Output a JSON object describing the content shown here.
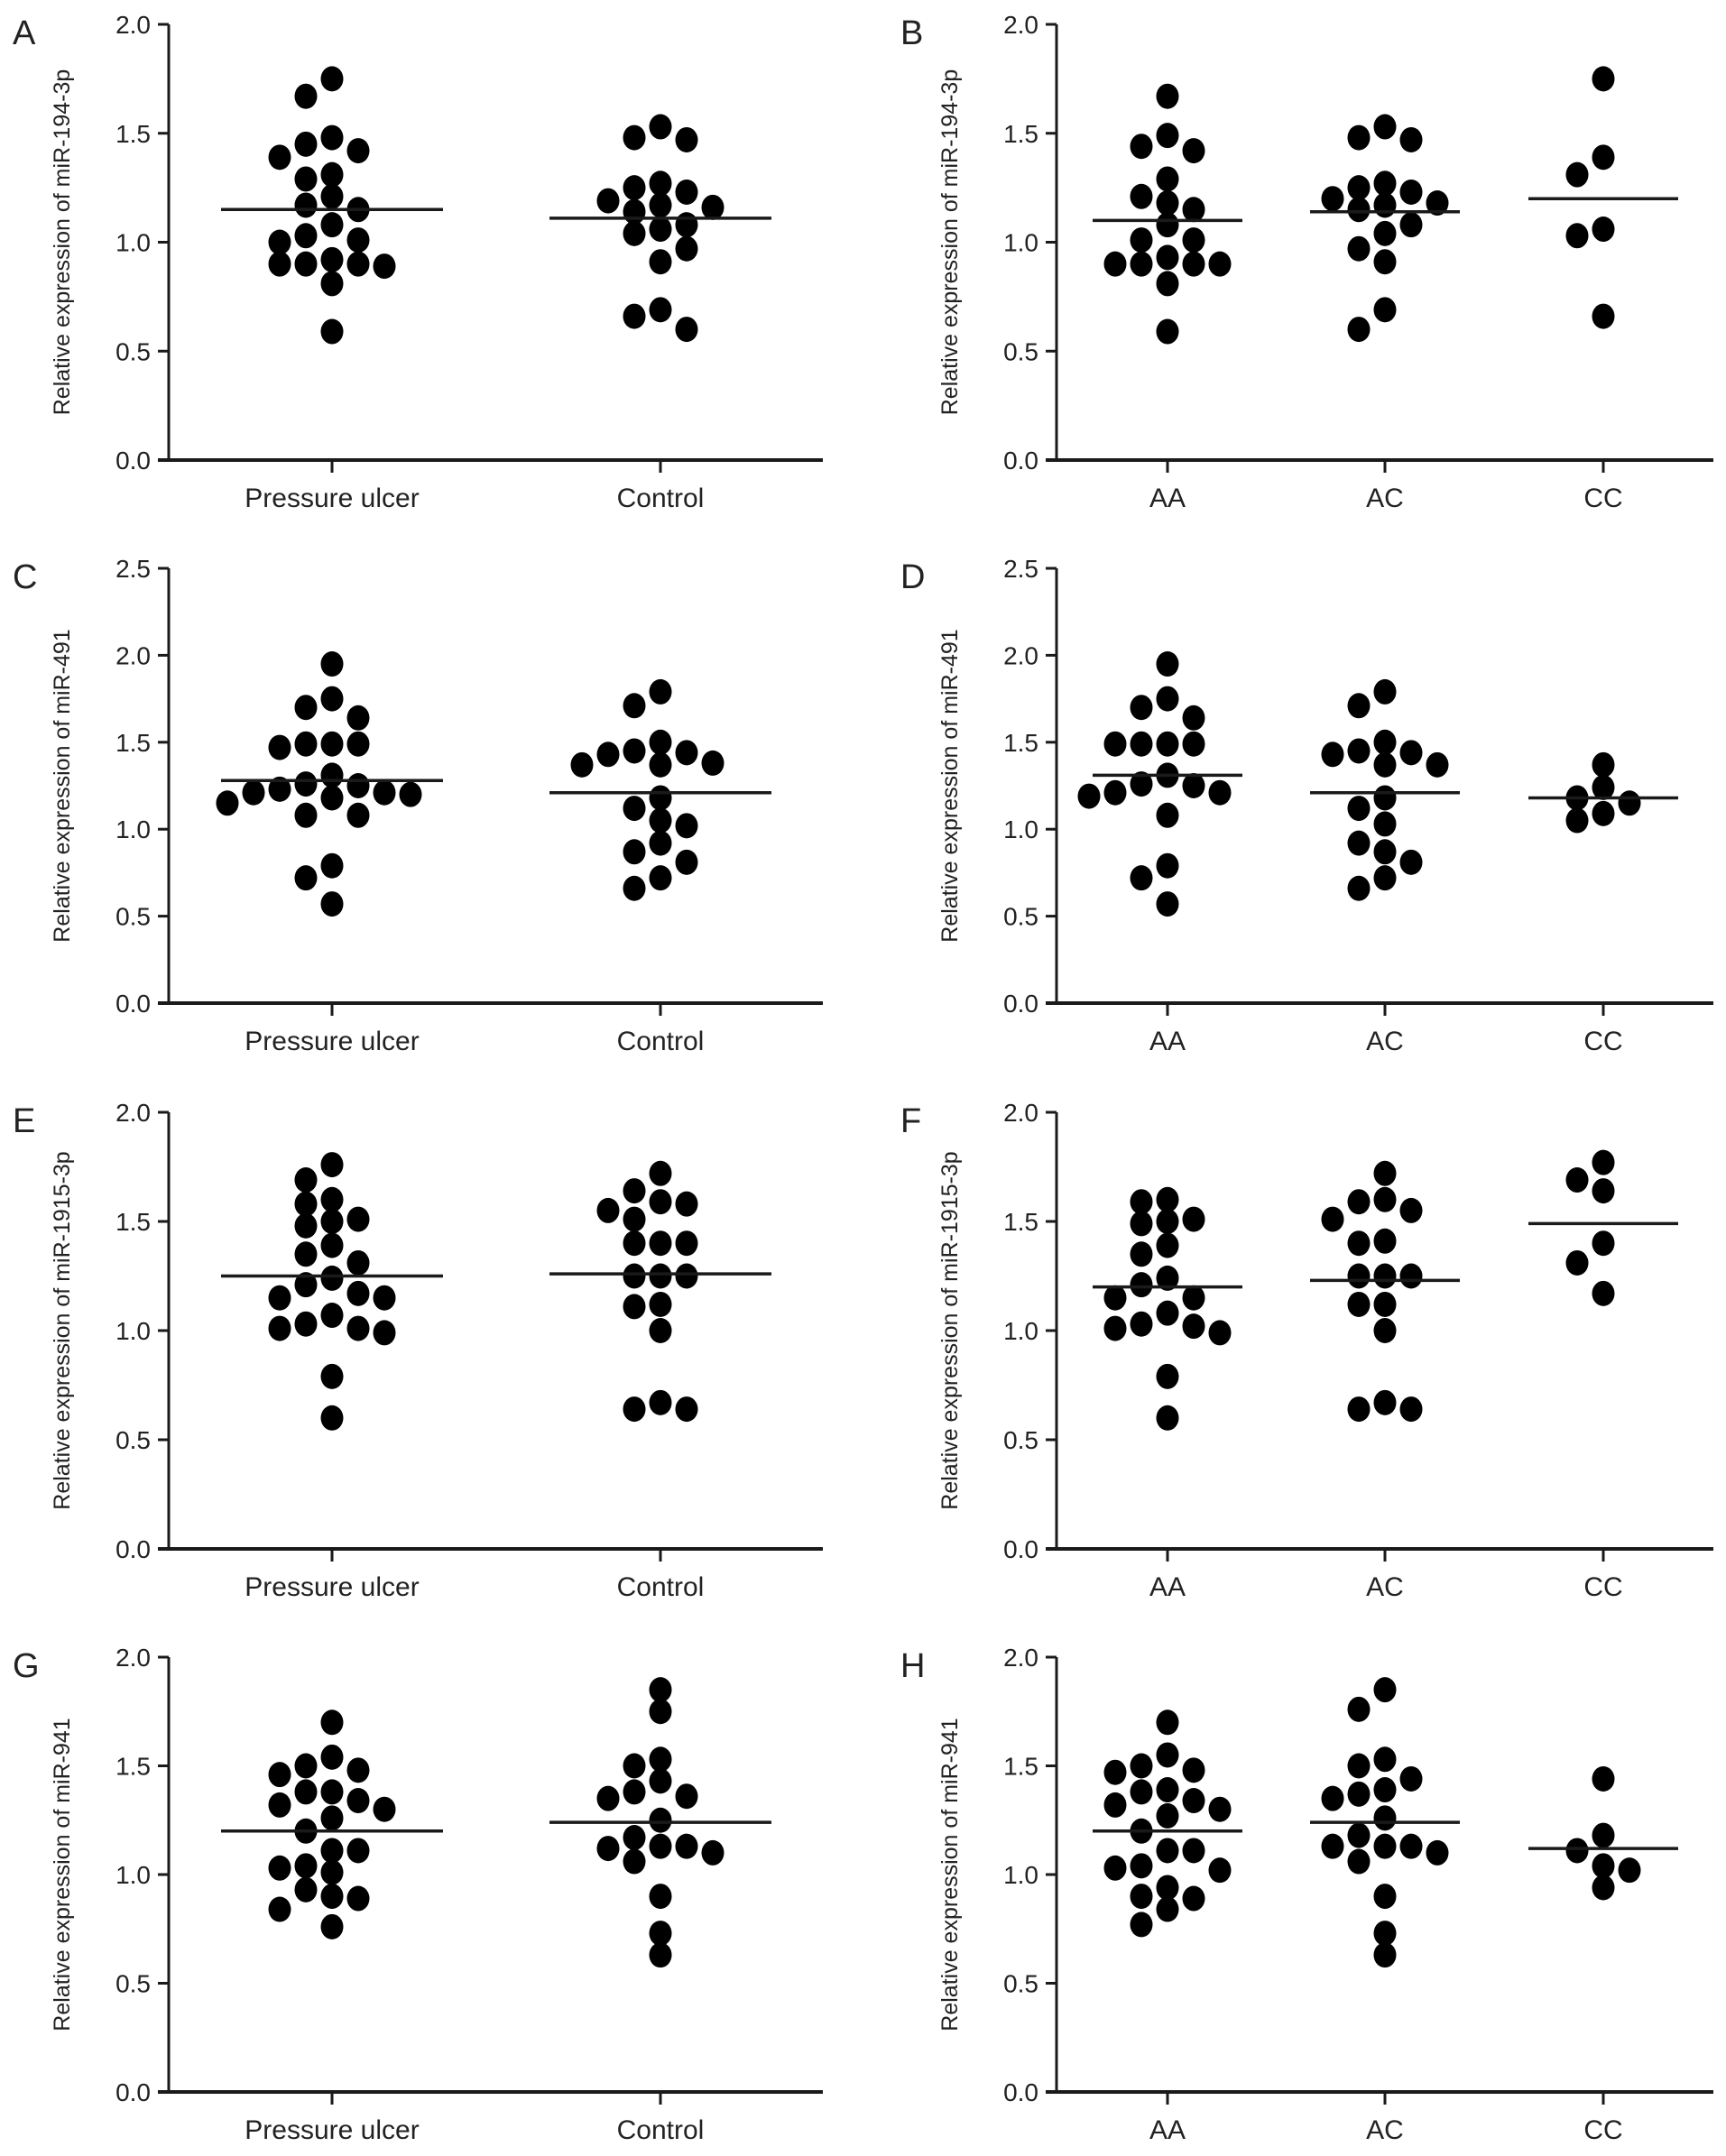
{
  "figure": {
    "colors": {
      "dot": "#000000",
      "axis": "#1a1a1a",
      "mean": "#1a1a1a",
      "text": "#222222"
    }
  },
  "chart_data": [
    {
      "panel": "A",
      "type": "scatter",
      "subtype": "dot-plot-with-mean",
      "ylabel": "Relative expression of miR-194-3p",
      "ylim": [
        0,
        2.0
      ],
      "yticks": [
        "0.0",
        "0.5",
        "1.0",
        "1.5",
        "2.0"
      ],
      "categories": [
        "Pressure ulcer",
        "Control"
      ],
      "series": [
        {
          "name": "Pressure ulcer",
          "mean": 1.15,
          "values": [
            1.75,
            1.67,
            1.48,
            1.45,
            1.42,
            1.39,
            1.31,
            1.29,
            1.21,
            1.17,
            1.15,
            1.08,
            1.03,
            1.01,
            1.0,
            0.92,
            0.9,
            0.89,
            0.9,
            0.9,
            0.81,
            0.59
          ]
        },
        {
          "name": "Control",
          "mean": 1.11,
          "values": [
            1.53,
            1.47,
            1.48,
            1.25,
            1.27,
            1.23,
            1.19,
            1.17,
            1.16,
            1.14,
            1.08,
            1.06,
            1.04,
            0.97,
            0.91,
            0.69,
            0.66,
            0.6
          ]
        }
      ]
    },
    {
      "panel": "B",
      "type": "scatter",
      "subtype": "dot-plot-with-mean",
      "ylabel": "Relative expression of miR-194-3p",
      "ylim": [
        0,
        2.0
      ],
      "yticks": [
        "0.0",
        "0.5",
        "1.0",
        "1.5",
        "2.0"
      ],
      "categories": [
        "AA",
        "AC",
        "CC"
      ],
      "series": [
        {
          "name": "AA",
          "mean": 1.1,
          "values": [
            1.67,
            1.49,
            1.44,
            1.42,
            1.29,
            1.21,
            1.18,
            1.15,
            1.08,
            1.01,
            1.01,
            0.93,
            0.9,
            0.9,
            0.9,
            0.9,
            0.81,
            0.59
          ]
        },
        {
          "name": "AC",
          "mean": 1.14,
          "values": [
            1.53,
            1.47,
            1.48,
            1.25,
            1.27,
            1.23,
            1.2,
            1.18,
            1.17,
            1.15,
            1.08,
            1.04,
            0.97,
            0.91,
            0.69,
            0.6
          ]
        },
        {
          "name": "CC",
          "mean": 1.2,
          "values": [
            1.75,
            1.39,
            1.31,
            1.06,
            1.03,
            0.66
          ]
        }
      ]
    },
    {
      "panel": "C",
      "type": "scatter",
      "subtype": "dot-plot-with-mean",
      "ylabel": "Relative expression of miR-491",
      "ylim": [
        0,
        2.5
      ],
      "yticks": [
        "0.0",
        "0.5",
        "1.0",
        "1.5",
        "2.0",
        "2.5"
      ],
      "categories": [
        "Pressure ulcer",
        "Control"
      ],
      "series": [
        {
          "name": "Pressure ulcer",
          "mean": 1.28,
          "values": [
            1.95,
            1.75,
            1.7,
            1.64,
            1.49,
            1.47,
            1.49,
            1.49,
            1.31,
            1.26,
            1.25,
            1.23,
            1.21,
            1.2,
            1.21,
            1.18,
            1.15,
            1.08,
            1.08,
            0.79,
            0.72,
            0.57
          ]
        },
        {
          "name": "Control",
          "mean": 1.21,
          "values": [
            1.79,
            1.71,
            1.5,
            1.45,
            1.43,
            1.44,
            1.37,
            1.37,
            1.38,
            1.18,
            1.12,
            1.05,
            1.02,
            0.92,
            0.87,
            0.81,
            0.72,
            0.66
          ]
        }
      ]
    },
    {
      "panel": "D",
      "type": "scatter",
      "subtype": "dot-plot-with-mean",
      "ylabel": "Relative expression of miR-491",
      "ylim": [
        0,
        2.5
      ],
      "yticks": [
        "0.0",
        "0.5",
        "1.0",
        "1.5",
        "2.0",
        "2.5"
      ],
      "categories": [
        "AA",
        "AC",
        "CC"
      ],
      "series": [
        {
          "name": "AA",
          "mean": 1.31,
          "values": [
            1.95,
            1.75,
            1.7,
            1.64,
            1.49,
            1.49,
            1.49,
            1.49,
            1.31,
            1.26,
            1.25,
            1.21,
            1.19,
            1.21,
            1.08,
            0.79,
            0.72,
            0.57
          ]
        },
        {
          "name": "AC",
          "mean": 1.21,
          "values": [
            1.79,
            1.71,
            1.5,
            1.44,
            1.43,
            1.45,
            1.37,
            1.37,
            1.18,
            1.12,
            1.03,
            0.92,
            0.87,
            0.81,
            0.72,
            0.66
          ]
        },
        {
          "name": "CC",
          "mean": 1.18,
          "values": [
            1.37,
            1.24,
            1.18,
            1.15,
            1.09,
            1.05
          ]
        }
      ]
    },
    {
      "panel": "E",
      "type": "scatter",
      "subtype": "dot-plot-with-mean",
      "ylabel": "Relative expression of miR-1915-3p",
      "ylim": [
        0,
        2.0
      ],
      "yticks": [
        "0.0",
        "0.5",
        "1.0",
        "1.5",
        "2.0"
      ],
      "categories": [
        "Pressure ulcer",
        "Control"
      ],
      "series": [
        {
          "name": "Pressure ulcer",
          "mean": 1.25,
          "values": [
            1.76,
            1.69,
            1.6,
            1.58,
            1.51,
            1.5,
            1.48,
            1.39,
            1.35,
            1.31,
            1.24,
            1.21,
            1.17,
            1.15,
            1.15,
            1.07,
            1.03,
            1.01,
            1.01,
            0.99,
            0.79,
            0.6
          ]
        },
        {
          "name": "Control",
          "mean": 1.26,
          "values": [
            1.72,
            1.64,
            1.59,
            1.58,
            1.55,
            1.51,
            1.4,
            1.4,
            1.4,
            1.25,
            1.25,
            1.25,
            1.11,
            1.12,
            1.0,
            0.67,
            0.64,
            0.64
          ]
        }
      ]
    },
    {
      "panel": "F",
      "type": "scatter",
      "subtype": "dot-plot-with-mean",
      "ylabel": "Relative expression of miR-1915-3p",
      "ylim": [
        0,
        2.0
      ],
      "yticks": [
        "0.0",
        "0.5",
        "1.0",
        "1.5",
        "2.0"
      ],
      "categories": [
        "AA",
        "AC",
        "CC"
      ],
      "series": [
        {
          "name": "AA",
          "mean": 1.2,
          "values": [
            1.6,
            1.59,
            1.51,
            1.5,
            1.49,
            1.39,
            1.35,
            1.24,
            1.21,
            1.15,
            1.15,
            1.08,
            1.03,
            1.02,
            1.01,
            0.99,
            0.79,
            0.6
          ]
        },
        {
          "name": "AC",
          "mean": 1.23,
          "values": [
            1.72,
            1.6,
            1.59,
            1.55,
            1.51,
            1.41,
            1.4,
            1.25,
            1.25,
            1.25,
            1.12,
            1.12,
            1.0,
            0.67,
            0.64,
            0.64
          ]
        },
        {
          "name": "CC",
          "mean": 1.49,
          "values": [
            1.77,
            1.69,
            1.64,
            1.4,
            1.31,
            1.17
          ]
        }
      ]
    },
    {
      "panel": "G",
      "type": "scatter",
      "subtype": "dot-plot-with-mean",
      "ylabel": "Relative expression of miR-941",
      "ylim": [
        0,
        2.0
      ],
      "yticks": [
        "0.0",
        "0.5",
        "1.0",
        "1.5",
        "2.0"
      ],
      "categories": [
        "Pressure ulcer",
        "Control"
      ],
      "series": [
        {
          "name": "Pressure ulcer",
          "mean": 1.2,
          "values": [
            1.7,
            1.54,
            1.5,
            1.48,
            1.46,
            1.38,
            1.38,
            1.34,
            1.32,
            1.3,
            1.26,
            1.2,
            1.11,
            1.11,
            1.04,
            1.01,
            1.03,
            0.93,
            0.9,
            0.89,
            0.84,
            0.76
          ]
        },
        {
          "name": "Control",
          "mean": 1.24,
          "values": [
            1.85,
            1.75,
            1.53,
            1.5,
            1.43,
            1.38,
            1.36,
            1.35,
            1.25,
            1.13,
            1.12,
            1.17,
            1.13,
            1.1,
            1.06,
            0.9,
            0.73,
            0.63
          ]
        }
      ]
    },
    {
      "panel": "H",
      "type": "scatter",
      "subtype": "dot-plot-with-mean",
      "ylabel": "Relative expression of miR-941",
      "ylim": [
        0,
        2.0
      ],
      "yticks": [
        "0.0",
        "0.5",
        "1.0",
        "1.5",
        "2.0"
      ],
      "categories": [
        "AA",
        "AC",
        "CC"
      ],
      "series": [
        {
          "name": "AA",
          "mean": 1.2,
          "values": [
            1.7,
            1.55,
            1.5,
            1.48,
            1.47,
            1.39,
            1.38,
            1.34,
            1.32,
            1.3,
            1.27,
            1.2,
            1.11,
            1.11,
            1.04,
            1.02,
            1.03,
            0.94,
            0.9,
            0.89,
            0.84,
            0.77
          ]
        },
        {
          "name": "AC",
          "mean": 1.24,
          "values": [
            1.85,
            1.76,
            1.53,
            1.5,
            1.44,
            1.39,
            1.37,
            1.35,
            1.26,
            1.18,
            1.13,
            1.13,
            1.13,
            1.1,
            1.06,
            0.9,
            0.73,
            0.63
          ]
        },
        {
          "name": "CC",
          "mean": 1.12,
          "values": [
            1.44,
            1.18,
            1.11,
            1.04,
            1.02,
            0.94
          ]
        }
      ]
    }
  ]
}
